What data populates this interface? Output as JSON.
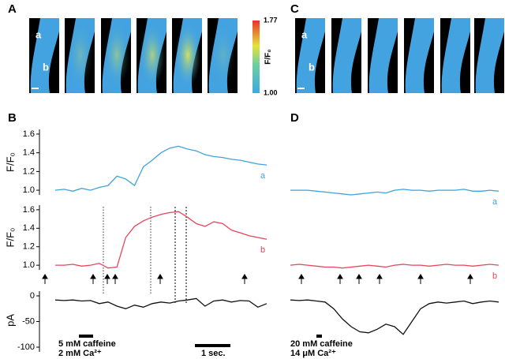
{
  "panel_labels": [
    "A",
    "B",
    "C",
    "D"
  ],
  "images": {
    "A": {
      "region_labels": [
        "a",
        "b"
      ]
    },
    "C": {
      "region_labels": [
        "a",
        "b"
      ]
    }
  },
  "colorbar": {
    "label": "F/F₀",
    "clim": [
      1.0,
      1.77
    ],
    "ticks": [
      {
        "value": 1.77,
        "label": "1.77"
      },
      {
        "value": 1.0,
        "label": "1.00"
      }
    ]
  },
  "chart_data": [
    {
      "type": "line",
      "ylabel": "F/F₀",
      "trace_label": "a",
      "color": "#3fa3dd",
      "ylim": [
        0.95,
        1.65
      ],
      "yticks": [
        {
          "value": 1.0,
          "label": "1.0"
        },
        {
          "value": 1.2,
          "label": "1.2"
        },
        {
          "value": 1.4,
          "label": "1.4"
        },
        {
          "value": 1.6,
          "label": "1.6"
        }
      ],
      "values": [
        1.0,
        1.01,
        0.99,
        1.02,
        1.0,
        1.03,
        1.05,
        1.15,
        1.12,
        1.05,
        1.25,
        1.32,
        1.4,
        1.45,
        1.47,
        1.44,
        1.42,
        1.38,
        1.36,
        1.35,
        1.33,
        1.32,
        1.3,
        1.28,
        1.27
      ]
    },
    {
      "type": "line",
      "ylabel": "F/F₀",
      "trace_label": "b",
      "color": "#e8455c",
      "ylim": [
        0.95,
        1.65
      ],
      "yticks": [
        {
          "value": 1.0,
          "label": "1.0"
        },
        {
          "value": 1.2,
          "label": "1.2"
        },
        {
          "value": 1.4,
          "label": "1.4"
        },
        {
          "value": 1.6,
          "label": "1.6"
        }
      ],
      "values": [
        1.0,
        1.0,
        1.01,
        0.99,
        1.0,
        1.02,
        0.97,
        0.98,
        1.3,
        1.42,
        1.48,
        1.52,
        1.55,
        1.57,
        1.58,
        1.52,
        1.45,
        1.42,
        1.47,
        1.45,
        1.38,
        1.35,
        1.32,
        1.3,
        1.28
      ]
    },
    {
      "type": "line",
      "ylabel": "pA",
      "color": "#111111",
      "ylim": [
        -105,
        10
      ],
      "yticks": [
        -100,
        -50,
        0
      ],
      "values": [
        -8,
        -9,
        -8,
        -10,
        -9,
        -15,
        -12,
        -20,
        -25,
        -18,
        -22,
        -15,
        -12,
        -14,
        -10,
        -8,
        -5,
        -20,
        -10,
        -8,
        -12,
        -9,
        -10,
        -22,
        -15
      ]
    },
    {
      "type": "line",
      "trace_label": "a",
      "color": "#3fa3dd",
      "ylim": [
        0.95,
        1.65
      ],
      "values": [
        1.0,
        1.0,
        1.0,
        0.99,
        0.98,
        0.97,
        0.96,
        0.95,
        0.96,
        0.97,
        0.98,
        0.97,
        1.0,
        1.01,
        1.0,
        1.0,
        0.99,
        1.0,
        1.0,
        1.0,
        1.01,
        0.99,
        0.99,
        1.0,
        0.99
      ]
    },
    {
      "type": "line",
      "trace_label": "b",
      "color": "#e8455c",
      "ylim": [
        0.95,
        1.65
      ],
      "values": [
        1.0,
        1.01,
        1.0,
        0.99,
        0.98,
        0.98,
        0.97,
        0.98,
        0.99,
        1.0,
        0.99,
        0.98,
        1.0,
        1.01,
        1.0,
        1.0,
        0.99,
        1.0,
        1.01,
        1.0,
        1.0,
        0.99,
        1.0,
        1.01,
        1.0
      ]
    },
    {
      "type": "line",
      "color": "#111111",
      "ylim": [
        -105,
        10
      ],
      "values": [
        -8,
        -9,
        -8,
        -10,
        -12,
        -25,
        -45,
        -60,
        -70,
        -72,
        -65,
        -55,
        -60,
        -75,
        -50,
        -25,
        -15,
        -12,
        -14,
        -12,
        -10,
        -15,
        -12,
        -10,
        -12
      ]
    }
  ],
  "annotations": {
    "B": [
      "5 mM caffeine",
      "2 mM Ca²⁺",
      "1 sec."
    ],
    "D": [
      "20 mM caffeine",
      "14 μM Ca²⁺"
    ]
  }
}
